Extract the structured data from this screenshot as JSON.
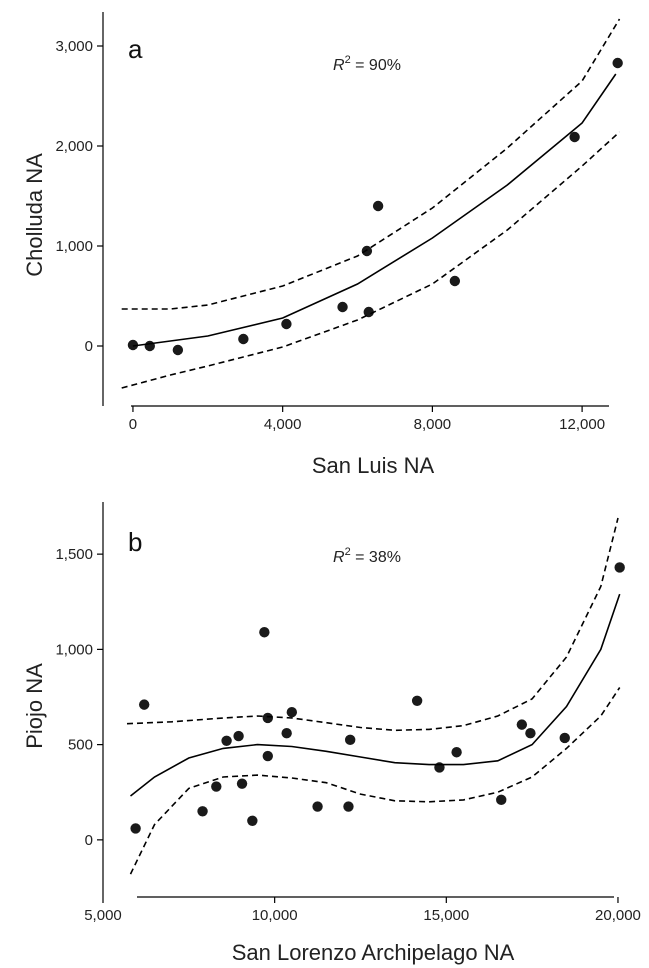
{
  "chart_data": [
    {
      "type": "scatter",
      "panel_label": "a",
      "annotation_r": "R",
      "annotation_sup": "2",
      "annotation_rest": " = 90%",
      "xlabel": "San Luis NA",
      "ylabel": "Cholluda NA",
      "xlim": [
        -800,
        13600
      ],
      "ylim": [
        -600,
        3400
      ],
      "xticks": [
        0,
        4000,
        8000,
        12000
      ],
      "xtick_labels": [
        "0",
        "4,000",
        "8,000",
        "12,000"
      ],
      "yticks": [
        0,
        1000,
        2000,
        3000
      ],
      "ytick_labels": [
        "0",
        "1,000",
        "2,000",
        "3,000"
      ],
      "series": [
        {
          "role": "points",
          "x": [
            0,
            450,
            1200,
            2950,
            4100,
            5600,
            6250,
            6300,
            6550,
            8600,
            11800,
            12950
          ],
          "y": [
            10,
            0,
            -40,
            70,
            220,
            390,
            950,
            340,
            1400,
            650,
            2090,
            2830
          ]
        },
        {
          "role": "fit",
          "x": [
            0,
            2000,
            4000,
            6000,
            8000,
            10000,
            12000,
            12900
          ],
          "y": [
            0,
            100,
            280,
            620,
            1080,
            1610,
            2230,
            2720
          ]
        },
        {
          "role": "ci-upper",
          "x": [
            -300,
            1000,
            2000,
            4000,
            6000,
            8000,
            10000,
            12000,
            13000
          ],
          "y": [
            370,
            370,
            410,
            600,
            900,
            1380,
            1980,
            2650,
            3270
          ]
        },
        {
          "role": "ci-lower",
          "x": [
            -300,
            1000,
            2000,
            4000,
            6000,
            8000,
            10000,
            12000,
            13000
          ],
          "y": [
            -420,
            -290,
            -200,
            -10,
            260,
            620,
            1160,
            1800,
            2140
          ]
        }
      ]
    },
    {
      "type": "scatter",
      "panel_label": "b",
      "annotation_r": "R",
      "annotation_sup": "2",
      "annotation_rest": " = 38%",
      "xlabel": "San Lorenzo Archipelago NA",
      "ylabel": "Piojo NA",
      "xlim": [
        5000,
        20700
      ],
      "ylim": [
        -300,
        1800
      ],
      "xticks": [
        5000,
        10000,
        15000,
        20000
      ],
      "xtick_labels": [
        "5,000",
        "10,000",
        "15,000",
        "20,000"
      ],
      "yticks": [
        0,
        500,
        1000,
        1500
      ],
      "ytick_labels": [
        "0",
        "500",
        "1,000",
        "1,500"
      ],
      "series": [
        {
          "role": "points",
          "x": [
            5950,
            6200,
            7900,
            8300,
            8600,
            8950,
            9050,
            9350,
            9700,
            9800,
            9800,
            10350,
            10500,
            11250,
            12150,
            12200,
            14150,
            14800,
            15300,
            16600,
            17200,
            17450,
            18450,
            20050
          ],
          "y": [
            60,
            710,
            150,
            280,
            520,
            545,
            295,
            100,
            1090,
            440,
            640,
            560,
            670,
            175,
            175,
            525,
            730,
            380,
            460,
            210,
            605,
            560,
            535,
            1430
          ]
        },
        {
          "role": "fit",
          "x": [
            5800,
            6500,
            7500,
            8500,
            9500,
            10500,
            11500,
            12500,
            13500,
            14500,
            15500,
            16500,
            17500,
            18500,
            19500,
            20050
          ],
          "y": [
            230,
            330,
            430,
            480,
            500,
            490,
            465,
            435,
            405,
            395,
            395,
            415,
            500,
            700,
            1000,
            1290
          ]
        },
        {
          "role": "ci-upper",
          "x": [
            5700,
            7000,
            8500,
            9500,
            10500,
            11500,
            12500,
            13500,
            14500,
            15500,
            16500,
            17500,
            18500,
            19500,
            20000
          ],
          "y": [
            610,
            620,
            640,
            650,
            640,
            615,
            590,
            575,
            580,
            600,
            650,
            740,
            960,
            1330,
            1690
          ]
        },
        {
          "role": "ci-lower",
          "x": [
            5800,
            6500,
            7500,
            8500,
            9500,
            10500,
            11500,
            12500,
            13500,
            14500,
            15500,
            16500,
            17500,
            18500,
            19500,
            20050
          ],
          "y": [
            -180,
            80,
            270,
            330,
            340,
            325,
            300,
            240,
            205,
            200,
            210,
            250,
            330,
            480,
            650,
            800
          ]
        }
      ]
    }
  ]
}
